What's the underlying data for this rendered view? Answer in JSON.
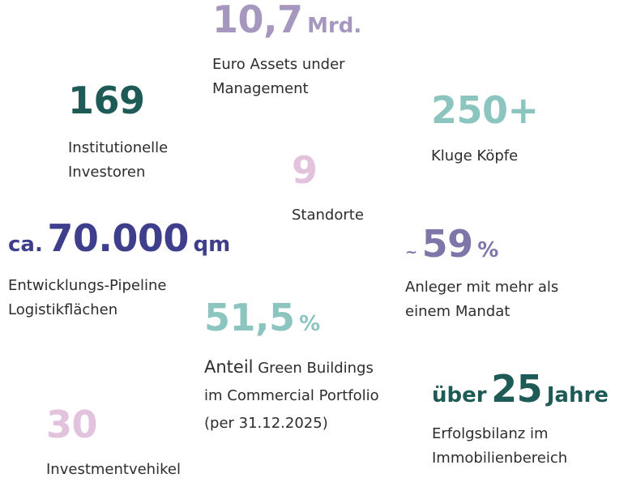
{
  "stats": [
    {
      "number": "10,7",
      "unit": "Mrd.",
      "description": [
        "Euro Assets under",
        "Management"
      ],
      "color": "#a597bd"
    },
    {
      "number": "169",
      "description": [
        "Institutionelle",
        "Investoren"
      ],
      "color": "#1e5a56"
    },
    {
      "number": "250+",
      "description": [
        "Kluge Köpfe"
      ],
      "color": "#8cc5bf"
    },
    {
      "number": "9",
      "description": [
        "Standorte"
      ],
      "color": "#e2c2dd"
    },
    {
      "prefix": "ca.",
      "number": "70.000",
      "unit": "qm",
      "description": [
        "Entwicklungs-Pipeline",
        "Logistikflächen"
      ],
      "color": "#3f3e8c"
    },
    {
      "prefix": "~",
      "number": "59",
      "unit": "%",
      "description": [
        "Anleger mit mehr als",
        "einem Mandat"
      ],
      "color": "#7e75a9"
    },
    {
      "number": "51,5",
      "unit": "%",
      "lead": "Anteil",
      "description": [
        "Green Buildings",
        "im Commercial Portfolio",
        "(per 31.12.2025)"
      ],
      "color": "#8cc5bf"
    },
    {
      "prefix": "über",
      "number": "25",
      "unit": "Jahre",
      "description": [
        "Erfolgsbilanz im",
        "Immobilienbereich"
      ],
      "color": "#1e5a56"
    },
    {
      "number": "30",
      "description": [
        "Investmentvehikel"
      ],
      "color": "#e2c2dd"
    }
  ]
}
